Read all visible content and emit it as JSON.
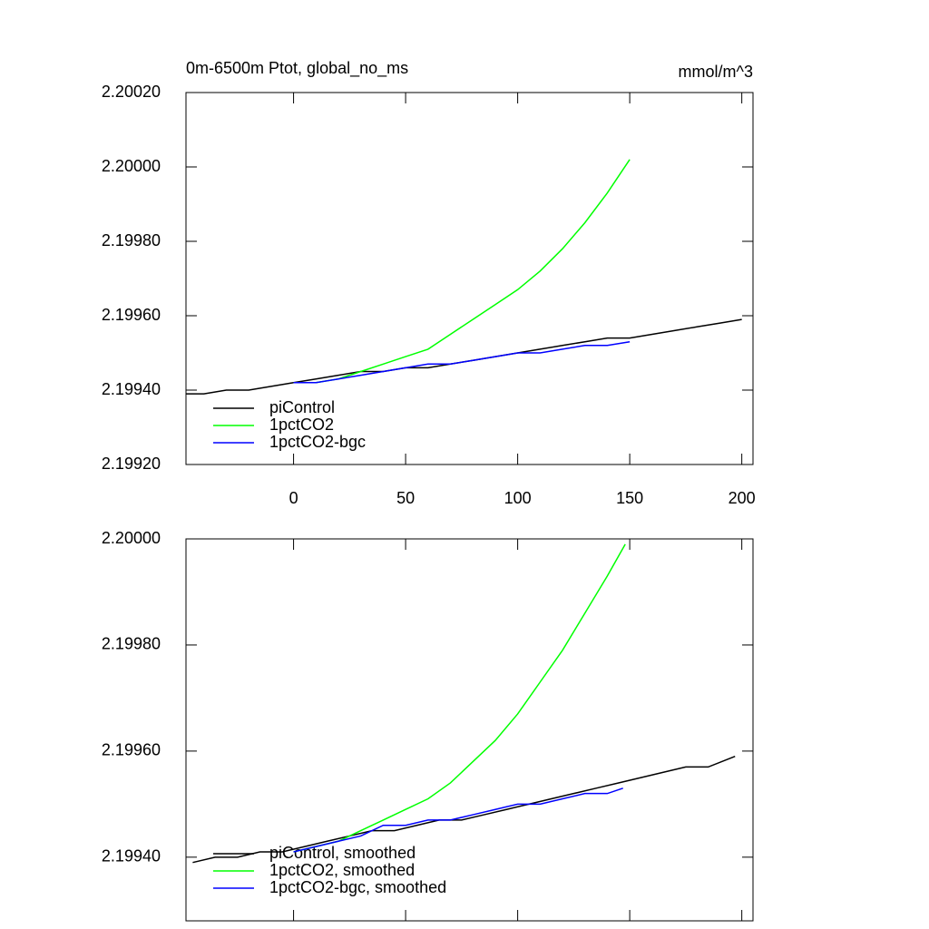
{
  "chart_data": [
    {
      "type": "line",
      "title": "0m-6500m Ptot, global_no_ms",
      "units": "mmol/m^3",
      "xlim": [
        -48,
        205
      ],
      "xticks": [
        0,
        50,
        100,
        150,
        200
      ],
      "show_xtick_labels": true,
      "ylim": [
        2.1992,
        2.2002
      ],
      "yticks": [
        {
          "value": 2.1992,
          "label": "2.19920"
        },
        {
          "value": 2.1994,
          "label": "2.19940"
        },
        {
          "value": 2.1996,
          "label": "2.19960"
        },
        {
          "value": 2.1998,
          "label": "2.19980"
        },
        {
          "value": 2.2,
          "label": "2.20000"
        },
        {
          "value": 2.2002,
          "label": "2.20020"
        }
      ],
      "legend": "lower left",
      "series": [
        {
          "name": "piControl",
          "color": "#000000",
          "x": [
            -48,
            -40,
            -30,
            -20,
            -10,
            0,
            10,
            20,
            30,
            40,
            50,
            60,
            70,
            80,
            90,
            100,
            110,
            120,
            130,
            140,
            150,
            160,
            170,
            180,
            190,
            200
          ],
          "values": [
            2.19939,
            2.19939,
            2.1994,
            2.1994,
            2.19941,
            2.19942,
            2.19943,
            2.19944,
            2.19945,
            2.19945,
            2.19946,
            2.19946,
            2.19947,
            2.19948,
            2.19949,
            2.1995,
            2.19951,
            2.19952,
            2.19953,
            2.19954,
            2.19954,
            2.19955,
            2.19956,
            2.19957,
            2.19958,
            2.19959
          ]
        },
        {
          "name": "1pctCO2",
          "color": "#00ff00",
          "x": [
            0,
            10,
            20,
            30,
            40,
            50,
            60,
            70,
            80,
            90,
            100,
            110,
            120,
            130,
            140,
            150
          ],
          "values": [
            2.19942,
            2.19942,
            2.19943,
            2.19945,
            2.19947,
            2.19949,
            2.19951,
            2.19955,
            2.19959,
            2.19963,
            2.19967,
            2.19972,
            2.19978,
            2.19985,
            2.19993,
            2.20002
          ]
        },
        {
          "name": "1pctCO2-bgc",
          "color": "#0000ff",
          "x": [
            0,
            10,
            20,
            30,
            40,
            50,
            60,
            70,
            80,
            90,
            100,
            110,
            120,
            130,
            140,
            150
          ],
          "values": [
            2.19942,
            2.19942,
            2.19943,
            2.19944,
            2.19945,
            2.19946,
            2.19947,
            2.19947,
            2.19948,
            2.19949,
            2.1995,
            2.1995,
            2.19951,
            2.19952,
            2.19952,
            2.19953
          ]
        }
      ]
    },
    {
      "type": "line",
      "xlim": [
        -48,
        205
      ],
      "xticks": [
        0,
        50,
        100,
        150,
        200
      ],
      "show_xtick_labels": false,
      "ylim": [
        2.19928,
        2.2
      ],
      "yticks": [
        {
          "value": 2.1994,
          "label": "2.19940"
        },
        {
          "value": 2.1996,
          "label": "2.19960"
        },
        {
          "value": 2.1998,
          "label": "2.19980"
        },
        {
          "value": 2.2,
          "label": "2.20000"
        }
      ],
      "legend": "lower left",
      "series": [
        {
          "name": "piControl, smoothed",
          "color": "#000000",
          "x": [
            -45,
            -35,
            -25,
            -15,
            -5,
            5,
            15,
            25,
            35,
            45,
            55,
            65,
            75,
            85,
            95,
            105,
            115,
            125,
            135,
            145,
            155,
            165,
            175,
            185,
            197
          ],
          "values": [
            2.19939,
            2.1994,
            2.1994,
            2.19941,
            2.19941,
            2.19942,
            2.19943,
            2.19944,
            2.19945,
            2.19945,
            2.19946,
            2.19947,
            2.19947,
            2.19948,
            2.19949,
            2.1995,
            2.19951,
            2.19952,
            2.19953,
            2.19954,
            2.19955,
            2.19956,
            2.19957,
            2.19957,
            2.19959
          ]
        },
        {
          "name": "1pctCO2, smoothed",
          "color": "#00ff00",
          "x": [
            0,
            10,
            20,
            30,
            40,
            50,
            60,
            70,
            80,
            90,
            100,
            110,
            120,
            130,
            140,
            148
          ],
          "values": [
            2.19941,
            2.19942,
            2.19943,
            2.19945,
            2.19947,
            2.19949,
            2.19951,
            2.19954,
            2.19958,
            2.19962,
            2.19967,
            2.19973,
            2.19979,
            2.19986,
            2.19993,
            2.19999
          ]
        },
        {
          "name": "1pctCO2-bgc, smoothed",
          "color": "#0000ff",
          "x": [
            0,
            10,
            20,
            30,
            40,
            50,
            60,
            70,
            80,
            90,
            100,
            110,
            120,
            130,
            140,
            147
          ],
          "values": [
            2.19941,
            2.19942,
            2.19943,
            2.19944,
            2.19946,
            2.19946,
            2.19947,
            2.19947,
            2.19948,
            2.19949,
            2.1995,
            2.1995,
            2.19951,
            2.19952,
            2.19952,
            2.19953
          ]
        }
      ]
    }
  ]
}
